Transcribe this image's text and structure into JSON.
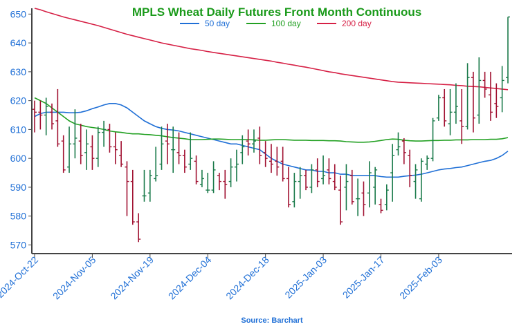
{
  "chart_data": {
    "type": "ohlc",
    "title": "MPLS Wheat Daily Futures Front Month Continuous",
    "source": "Source: Barchart",
    "ylim": [
      567,
      652
    ],
    "yticks": [
      570,
      580,
      590,
      600,
      610,
      620,
      630,
      640,
      650
    ],
    "x_tick_labels": [
      "2024-Oct-22",
      "2024-Nov-05",
      "2024-Nov-19",
      "2024-Dec-04",
      "2024-Dec-18",
      "2025-Jan-03",
      "2025-Jan-17",
      "2025-Feb-03"
    ],
    "x_tick_indices": [
      0,
      10,
      20,
      30,
      40,
      50,
      60,
      70
    ],
    "grid": false,
    "legend_position": "top-center",
    "colors": {
      "title": "#1a9a1a",
      "up": "#1a7a4a",
      "down": "#a01030",
      "axis_text": "#1f6fd6",
      "ma50": "#1f6fd6",
      "ma100": "#22a022",
      "ma200": "#d62045",
      "axis": "#444444",
      "source": "#1f6fd6"
    },
    "ohlc": [
      [
        617,
        620,
        609,
        616
      ],
      [
        616,
        620,
        610,
        615
      ],
      [
        615,
        621,
        608,
        618
      ],
      [
        616,
        619,
        610,
        612
      ],
      [
        613,
        624,
        604,
        605
      ],
      [
        606,
        608,
        595,
        596
      ],
      [
        597,
        611,
        595,
        605
      ],
      [
        605,
        617,
        600,
        607
      ],
      [
        606,
        612,
        598,
        601
      ],
      [
        602,
        610,
        596,
        605
      ],
      [
        604,
        608,
        596,
        600
      ],
      [
        600,
        611,
        597,
        609
      ],
      [
        609,
        613,
        604,
        610
      ],
      [
        610,
        612,
        602,
        604
      ],
      [
        604,
        609,
        598,
        603
      ],
      [
        601,
        606,
        597,
        598
      ],
      [
        597,
        599,
        580,
        592
      ],
      [
        592,
        596,
        577,
        578
      ],
      [
        578,
        581,
        571,
        572
      ],
      [
        587,
        596,
        585,
        587
      ],
      [
        588,
        596,
        585,
        594
      ],
      [
        593,
        604,
        592,
        594
      ],
      [
        598,
        611,
        596,
        605
      ],
      [
        606,
        612,
        598,
        605
      ],
      [
        603,
        611,
        595,
        603
      ],
      [
        602,
        609,
        598,
        601
      ],
      [
        601,
        603,
        595,
        597
      ],
      [
        598,
        609,
        596,
        600
      ],
      [
        599,
        601,
        591,
        592
      ],
      [
        591,
        596,
        590,
        593
      ],
      [
        589,
        595,
        588,
        589
      ],
      [
        589,
        599,
        588,
        596
      ],
      [
        594,
        595,
        589,
        592
      ],
      [
        592,
        596,
        586,
        591
      ],
      [
        592,
        600,
        590,
        597
      ],
      [
        597,
        603,
        592,
        598
      ],
      [
        602,
        608,
        598,
        604
      ],
      [
        606,
        610,
        601,
        605
      ],
      [
        605,
        610,
        602,
        606
      ],
      [
        607,
        611,
        598,
        601
      ],
      [
        602,
        606,
        597,
        600
      ],
      [
        599,
        605,
        595,
        598
      ],
      [
        599,
        604,
        594,
        597
      ],
      [
        599,
        604,
        592,
        593
      ],
      [
        593,
        597,
        583,
        584
      ],
      [
        585,
        595,
        583,
        592
      ],
      [
        592,
        597,
        586,
        594
      ],
      [
        594,
        596,
        589,
        590
      ],
      [
        590,
        598,
        588,
        596
      ],
      [
        596,
        600,
        590,
        592
      ],
      [
        593,
        601,
        591,
        594
      ],
      [
        596,
        600,
        591,
        593
      ],
      [
        592,
        598,
        589,
        590
      ],
      [
        589,
        594,
        577,
        578
      ],
      [
        590,
        598,
        582,
        592
      ],
      [
        594,
        596,
        584,
        585
      ],
      [
        586,
        593,
        580,
        586
      ],
      [
        588,
        592,
        580,
        584
      ],
      [
        588,
        599,
        583,
        595
      ],
      [
        590,
        597,
        584,
        596
      ],
      [
        584,
        586,
        581,
        582
      ],
      [
        584,
        591,
        582,
        589
      ],
      [
        595,
        605,
        585,
        601
      ],
      [
        603,
        609,
        601,
        604
      ],
      [
        606,
        607,
        598,
        602
      ],
      [
        601,
        603,
        590,
        594
      ],
      [
        592,
        598,
        586,
        596
      ],
      [
        586,
        600,
        585,
        599
      ],
      [
        598,
        601,
        596,
        600
      ],
      [
        600,
        614,
        599,
        613
      ],
      [
        614,
        622,
        613,
        621
      ],
      [
        621,
        624,
        611,
        613
      ],
      [
        612,
        624,
        608,
        616
      ],
      [
        616,
        626,
        612,
        618
      ],
      [
        613,
        624,
        605,
        611
      ],
      [
        611,
        633,
        610,
        628
      ],
      [
        628,
        630,
        609,
        614
      ],
      [
        615,
        635,
        612,
        627
      ],
      [
        627,
        630,
        621,
        624
      ],
      [
        622,
        630,
        613,
        616
      ],
      [
        619,
        626,
        614,
        618
      ],
      [
        621,
        632,
        616,
        627
      ],
      [
        628,
        649,
        626,
        649
      ]
    ],
    "series": [
      {
        "name": "50 day",
        "values": [
          614.5,
          615.5,
          616,
          616,
          616,
          616,
          615.8,
          615.8,
          616,
          616.5,
          617.2,
          617.8,
          618.5,
          619,
          619,
          618.5,
          617.5,
          616,
          614.5,
          613,
          612,
          611,
          610.4,
          610,
          609.8,
          609.5,
          609,
          608.5,
          608,
          607.5,
          607,
          606.5,
          606,
          605.5,
          605,
          605,
          604.5,
          604,
          603.5,
          603,
          601.5,
          600,
          599,
          598,
          597.5,
          597,
          596.5,
          596,
          596,
          595.5,
          595.5,
          595,
          595,
          594.5,
          594.5,
          594,
          594,
          594,
          594,
          594,
          593.7,
          593.5,
          593.5,
          593.5,
          593.8,
          594,
          594.2,
          594.5,
          595,
          595.5,
          596,
          596.3,
          596.5,
          596.8,
          597,
          597.5,
          598,
          598.5,
          599,
          599.3,
          600,
          601,
          602.5
        ]
      },
      {
        "name": "100 day",
        "values": [
          621,
          620,
          619,
          617.5,
          616,
          614.5,
          613,
          612,
          611.5,
          611,
          610.7,
          610.4,
          610,
          609.5,
          609.2,
          609,
          608.7,
          608.5,
          608.5,
          608.3,
          608.2,
          608,
          607.8,
          607.5,
          607.2,
          607,
          606.8,
          606.5,
          606.5,
          606.5,
          606.6,
          606.7,
          606.7,
          606.6,
          606.5,
          606.5,
          606.5,
          606.5,
          606.4,
          606.3,
          606.3,
          606.4,
          606.5,
          606.5,
          606.4,
          606.3,
          606.3,
          606.3,
          606.2,
          606.2,
          606.2,
          606.1,
          606.1,
          606,
          605.8,
          605.7,
          605.6,
          605.6,
          605.7,
          605.9,
          606.2,
          606.5,
          606.7,
          606.6,
          606.3,
          606.1,
          606,
          606,
          606.1,
          606.2,
          606.2,
          606.3,
          606.3,
          606.4,
          606.4,
          606.4,
          606.5,
          606.5,
          606.5,
          606.6,
          606.6,
          606.8,
          607.2
        ]
      },
      {
        "name": "200 day",
        "values": [
          652,
          651.5,
          650.8,
          650.2,
          649.6,
          649,
          648.5,
          648,
          647.5,
          647,
          646.5,
          646,
          645.4,
          644.8,
          644.2,
          643.6,
          643,
          642.5,
          642,
          641.5,
          641,
          640.5,
          640,
          639.6,
          639.2,
          638.8,
          638.4,
          638,
          637.7,
          637.4,
          637,
          636.7,
          636.4,
          636.1,
          635.8,
          635.5,
          635.2,
          634.9,
          634.6,
          634.3,
          634,
          633.7,
          633.3,
          633,
          632.6,
          632.3,
          631.9,
          631.6,
          631.2,
          630.8,
          630.4,
          630,
          629.7,
          629.3,
          629,
          628.7,
          628.4,
          628.1,
          627.8,
          627.5,
          627.2,
          626.9,
          626.6,
          626.4,
          626.3,
          626.2,
          626.1,
          626,
          625.9,
          625.8,
          625.7,
          625.6,
          625.5,
          625.3,
          625.2,
          625,
          624.9,
          624.8,
          624.6,
          624.4,
          624.2,
          624,
          623.8
        ]
      }
    ]
  }
}
